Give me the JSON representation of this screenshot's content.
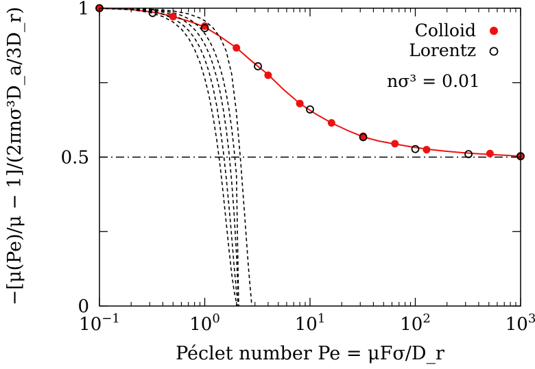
{
  "chart_data": {
    "type": "line",
    "title": "",
    "xlabel": "Péclet number Pe = μFσ/D_r",
    "ylabel": "−[μ(Pe)/μ − 1]/(2πnσ³D_a/3D_r)",
    "xscale": "log",
    "xlim": [
      0.1,
      1000
    ],
    "ylim": [
      0,
      1
    ],
    "x_ticks": [
      {
        "value": 0.1,
        "base": "10",
        "exp": "−1"
      },
      {
        "value": 1,
        "base": "10",
        "exp": "0"
      },
      {
        "value": 10,
        "base": "10",
        "exp": "1"
      },
      {
        "value": 100,
        "base": "10",
        "exp": "2"
      },
      {
        "value": 1000,
        "base": "10",
        "exp": "3"
      }
    ],
    "y_ticks": [
      {
        "value": 0,
        "label": "0"
      },
      {
        "value": 0.5,
        "label": "0.5"
      },
      {
        "value": 1,
        "label": "1"
      }
    ],
    "y_minor_ticks": [
      0.25,
      0.75
    ],
    "grid": false,
    "legend_position": "top-right",
    "annotation": {
      "text": "nσ³ = 0.01"
    },
    "series": [
      {
        "name": "Colloid",
        "style": "filled-circle",
        "color": "#ee1111",
        "x": [
          0.1,
          0.5,
          1.0,
          2.0,
          4.0,
          8.0,
          16,
          32,
          64,
          128,
          512,
          1000
        ],
        "y": [
          1.0,
          0.972,
          0.94,
          0.867,
          0.775,
          0.68,
          0.615,
          0.57,
          0.545,
          0.525,
          0.512,
          0.502
        ]
      },
      {
        "name": "Lorentz",
        "style": "open-circle",
        "color": "#000000",
        "x": [
          0.1,
          0.32,
          1.0,
          3.2,
          10,
          32,
          100,
          320,
          1000
        ],
        "y": [
          1.0,
          0.984,
          0.933,
          0.805,
          0.66,
          0.567,
          0.527,
          0.51,
          0.503
        ]
      },
      {
        "style": "solid-line",
        "color": "#ee1111",
        "x": [
          0.1,
          0.2,
          0.35,
          0.5,
          0.7,
          1.0,
          1.4,
          2.0,
          2.8,
          4.0,
          5.6,
          8.0,
          11.3,
          16,
          22.6,
          32,
          45,
          64,
          90,
          128,
          181,
          256,
          362,
          512,
          724,
          1000
        ],
        "y": [
          1.0,
          0.996,
          0.985,
          0.972,
          0.957,
          0.937,
          0.905,
          0.867,
          0.822,
          0.777,
          0.727,
          0.68,
          0.645,
          0.615,
          0.59,
          0.568,
          0.554,
          0.544,
          0.535,
          0.527,
          0.521,
          0.516,
          0.512,
          0.509,
          0.506,
          0.503
        ]
      },
      {
        "style": "dash-dot-line",
        "color": "#000000",
        "x": [
          0.1,
          1000
        ],
        "y": [
          0.5,
          0.5
        ]
      },
      {
        "style": "dashed-line",
        "color": "#000000",
        "x": [
          0.1,
          0.2,
          0.3,
          0.4,
          0.5,
          0.6,
          0.7,
          0.8,
          0.9,
          1.0,
          1.1,
          1.2,
          1.3,
          1.4,
          1.5,
          1.6,
          1.7,
          1.8,
          1.9,
          2.0,
          2.05
        ],
        "y": [
          1.0,
          0.995,
          0.986,
          0.972,
          0.954,
          0.93,
          0.9,
          0.862,
          0.818,
          0.765,
          0.705,
          0.635,
          0.558,
          0.47,
          0.375,
          0.28,
          0.19,
          0.11,
          0.05,
          0.012,
          0.0
        ]
      },
      {
        "style": "dashed-line",
        "color": "#000000",
        "x": [
          0.1,
          0.2,
          0.3,
          0.4,
          0.5,
          0.6,
          0.7,
          0.8,
          0.9,
          1.0,
          1.1,
          1.2,
          1.3,
          1.4,
          1.5,
          1.6,
          1.7,
          1.8,
          1.9,
          2.0,
          2.1
        ],
        "y": [
          1.0,
          0.996,
          0.99,
          0.98,
          0.966,
          0.948,
          0.926,
          0.9,
          0.868,
          0.83,
          0.785,
          0.733,
          0.672,
          0.6,
          0.52,
          0.43,
          0.335,
          0.235,
          0.135,
          0.05,
          0.0
        ]
      },
      {
        "style": "dashed-line",
        "color": "#000000",
        "x": [
          0.1,
          0.2,
          0.3,
          0.4,
          0.5,
          0.6,
          0.7,
          0.8,
          0.9,
          1.0,
          1.1,
          1.2,
          1.3,
          1.4,
          1.5,
          1.6,
          1.7,
          1.8,
          1.9,
          2.0,
          2.1
        ],
        "y": [
          1.0,
          0.997,
          0.993,
          0.987,
          0.977,
          0.964,
          0.948,
          0.929,
          0.906,
          0.879,
          0.847,
          0.81,
          0.767,
          0.718,
          0.66,
          0.593,
          0.515,
          0.42,
          0.31,
          0.175,
          0.0
        ]
      },
      {
        "style": "dashed-line",
        "color": "#000000",
        "x": [
          0.1,
          0.2,
          0.3,
          0.4,
          0.5,
          0.6,
          0.7,
          0.8,
          0.9,
          1.0,
          1.1,
          1.2,
          1.3,
          1.4,
          1.5,
          1.6,
          1.7,
          1.8,
          1.9,
          2.0,
          2.1
        ],
        "y": [
          1.0,
          0.998,
          0.995,
          0.991,
          0.985,
          0.976,
          0.965,
          0.951,
          0.935,
          0.915,
          0.892,
          0.866,
          0.835,
          0.8,
          0.76,
          0.713,
          0.66,
          0.598,
          0.525,
          0.44,
          0.0
        ]
      },
      {
        "style": "dashed-line",
        "color": "#000000",
        "x": [
          0.1,
          0.3,
          0.5,
          0.7,
          0.9,
          1.0,
          1.2,
          1.4,
          1.6,
          1.8,
          2.0,
          2.2,
          2.4,
          2.6,
          2.8
        ],
        "y": [
          1.0,
          0.997,
          0.991,
          0.981,
          0.967,
          0.958,
          0.934,
          0.902,
          0.856,
          0.78,
          0.65,
          0.48,
          0.3,
          0.13,
          0.0
        ]
      }
    ]
  }
}
